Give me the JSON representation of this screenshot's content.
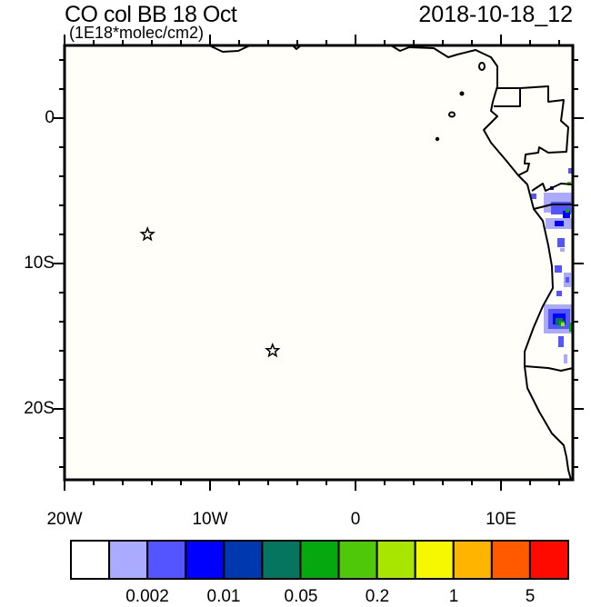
{
  "title": "CO col BB 18 Oct",
  "subtitle": "(1E18*molec/cm2)",
  "timestamp": "2018-10-18_12",
  "map": {
    "lon_range": [
      -20,
      15
    ],
    "lat_range": [
      -25,
      5
    ],
    "lat_labels": [
      {
        "lat": 0,
        "label": "0"
      },
      {
        "lat": -10,
        "label": "10S"
      },
      {
        "lat": -20,
        "label": "20S"
      }
    ],
    "lon_labels": [
      {
        "lon": -20,
        "label": "20W"
      },
      {
        "lon": -10,
        "label": "10W"
      },
      {
        "lon": 0,
        "label": "0"
      },
      {
        "lon": 10,
        "label": "10E"
      }
    ],
    "markers": [
      {
        "type": "star",
        "lon": -14.3,
        "lat": -8.0
      },
      {
        "type": "star",
        "lon": -5.7,
        "lat": -16.0
      }
    ],
    "background_color": "#fffef8"
  },
  "colorbar": {
    "colors": [
      "#ffffff",
      "#aaaaff",
      "#5555ff",
      "#0000ff",
      "#0038b0",
      "#057560",
      "#06a810",
      "#50c80a",
      "#a8e600",
      "#f5f800",
      "#ffb400",
      "#ff5a00",
      "#ff0a00"
    ],
    "labels": [
      "0.002",
      "0.01",
      "0.05",
      "0.2",
      "1",
      "5"
    ]
  }
}
